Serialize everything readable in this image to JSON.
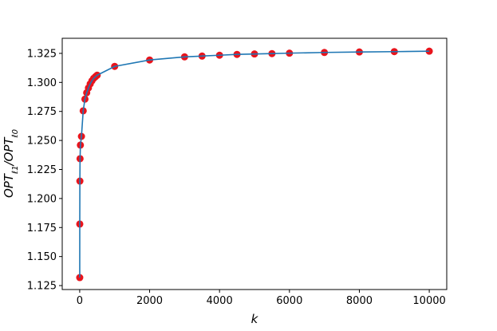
{
  "chart_data": {
    "type": "line",
    "xlabel": "k",
    "ylabel": [
      "OPT",
      "ℓ1",
      "/OPT",
      "ℓ0"
    ],
    "x": [
      1,
      2,
      5,
      10,
      20,
      50,
      100,
      150,
      200,
      250,
      300,
      350,
      400,
      450,
      500,
      1000,
      2000,
      3000,
      3500,
      4000,
      4500,
      5000,
      5500,
      6000,
      7000,
      8000,
      9000,
      10000
    ],
    "series": [
      {
        "color": "#1f77b4",
        "marker_color": "#e8141c",
        "values": [
          1.1319,
          1.178,
          1.215,
          1.2343,
          1.246,
          1.2535,
          1.2755,
          1.2856,
          1.2911,
          1.2952,
          1.2987,
          1.3014,
          1.3035,
          1.3049,
          1.3062,
          1.3138,
          1.3193,
          1.322,
          1.3227,
          1.3234,
          1.3241,
          1.3245,
          1.3248,
          1.3252,
          1.3258,
          1.3262,
          1.3265,
          1.3269
        ]
      }
    ],
    "xlim": [
      -500,
      10500
    ],
    "ylim": [
      1.1216,
      1.338
    ],
    "xticks": [
      0,
      2000,
      4000,
      6000,
      8000,
      10000
    ],
    "yticks": [
      1.125,
      {
        "value": 1.15,
        "label": "1.150"
      },
      1.175,
      {
        "value": 1.2,
        "label": "1.200"
      },
      1.225,
      {
        "value": 1.25,
        "label": "1.250"
      },
      1.275,
      {
        "value": 1.3,
        "label": "1.300"
      },
      1.325
    ]
  }
}
